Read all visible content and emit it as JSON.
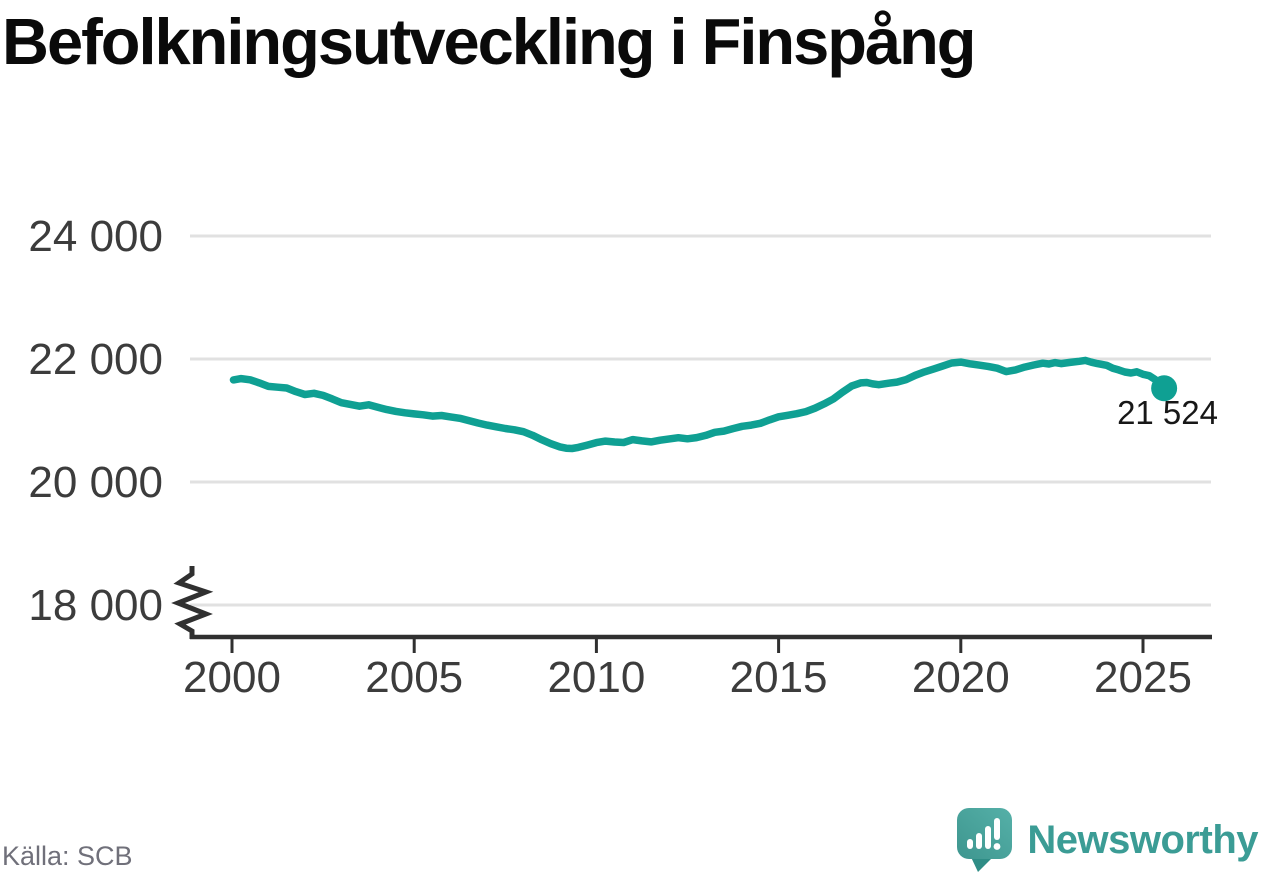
{
  "title": "Befolkningsutveckling i Finspång",
  "source": "Källa: SCB",
  "logo": {
    "text": "Newsworthy"
  },
  "colors": {
    "line": "#0fa093",
    "grid": "#e1e1e1",
    "axis": "#303030",
    "tick_label": "#3c3c3c",
    "end_label": "#171717",
    "source_text": "#70707a",
    "logo_teal_dark": "#3e968f",
    "logo_teal_light": "#55b0a8",
    "logo_tail": "#2f8d86",
    "logo_text": "#3b9c95"
  },
  "chart_data": {
    "type": "line",
    "title": "Befolkningsutveckling i Finspång",
    "xlabel": "",
    "ylabel": "",
    "grid": "horizontal",
    "legend": "none",
    "y_axis": {
      "break_at_bottom": true,
      "ticks": [
        {
          "value": 18000,
          "label": "18 000"
        },
        {
          "value": 20000,
          "label": "20 000"
        },
        {
          "value": 22000,
          "label": "22 000"
        },
        {
          "value": 24000,
          "label": "24 000"
        }
      ]
    },
    "x_axis": {
      "ticks": [
        {
          "value": 2000,
          "label": "2000"
        },
        {
          "value": 2005,
          "label": "2005"
        },
        {
          "value": 2010,
          "label": "2010"
        },
        {
          "value": 2015,
          "label": "2015"
        },
        {
          "value": 2020,
          "label": "2020"
        },
        {
          "value": 2025,
          "label": "2025"
        }
      ]
    },
    "end_label": "21 524",
    "end_value": 21524,
    "series": [
      {
        "x": [
          2000.04,
          2000.25,
          2000.5,
          2000.75,
          2001,
          2001.25,
          2001.5,
          2001.75,
          2002,
          2002.25,
          2002.5,
          2002.75,
          2003,
          2003.25,
          2003.5,
          2003.75,
          2004,
          2004.25,
          2004.5,
          2004.75,
          2005,
          2005.25,
          2005.5,
          2005.75,
          2006,
          2006.25,
          2006.5,
          2006.75,
          2007,
          2007.25,
          2007.5,
          2007.75,
          2008,
          2008.25,
          2008.5,
          2008.75,
          2009,
          2009.17,
          2009.33,
          2009.5,
          2009.75,
          2010,
          2010.25,
          2010.5,
          2010.75,
          2011,
          2011.25,
          2011.5,
          2011.75,
          2012,
          2012.25,
          2012.5,
          2012.75,
          2013,
          2013.25,
          2013.5,
          2013.75,
          2014,
          2014.25,
          2014.5,
          2014.75,
          2015,
          2015.25,
          2015.5,
          2015.75,
          2016,
          2016.25,
          2016.5,
          2016.75,
          2017,
          2017.25,
          2017.42,
          2017.58,
          2017.75,
          2018,
          2018.25,
          2018.5,
          2018.75,
          2019,
          2019.25,
          2019.5,
          2019.75,
          2020,
          2020.25,
          2020.5,
          2020.75,
          2021,
          2021.25,
          2021.5,
          2021.75,
          2022,
          2022.25,
          2022.42,
          2022.58,
          2022.75,
          2023,
          2023.25,
          2023.42,
          2023.58,
          2023.75,
          2024,
          2024.17,
          2024.33,
          2024.5,
          2024.67,
          2024.83,
          2025,
          2025.17,
          2025.33,
          2025.42,
          2025.5,
          2025.58
        ],
        "y": [
          21660,
          21682,
          21662,
          21612,
          21555,
          21542,
          21528,
          21470,
          21422,
          21442,
          21408,
          21352,
          21290,
          21262,
          21232,
          21255,
          21215,
          21178,
          21148,
          21125,
          21108,
          21092,
          21072,
          21082,
          21058,
          21035,
          20998,
          20960,
          20925,
          20898,
          20870,
          20848,
          20818,
          20760,
          20688,
          20622,
          20570,
          20550,
          20545,
          20562,
          20600,
          20640,
          20665,
          20650,
          20642,
          20690,
          20668,
          20652,
          20680,
          20700,
          20720,
          20702,
          20722,
          20758,
          20808,
          20828,
          20868,
          20905,
          20925,
          20955,
          21010,
          21060,
          21085,
          21110,
          21145,
          21200,
          21270,
          21350,
          21460,
          21560,
          21612,
          21618,
          21595,
          21582,
          21605,
          21625,
          21665,
          21735,
          21790,
          21835,
          21885,
          21935,
          21950,
          21922,
          21900,
          21880,
          21850,
          21795,
          21822,
          21868,
          21902,
          21932,
          21918,
          21942,
          21925,
          21945,
          21962,
          21978,
          21948,
          21925,
          21898,
          21848,
          21822,
          21788,
          21772,
          21792,
          21752,
          21728,
          21668,
          21615,
          21560,
          21524
        ]
      }
    ]
  }
}
